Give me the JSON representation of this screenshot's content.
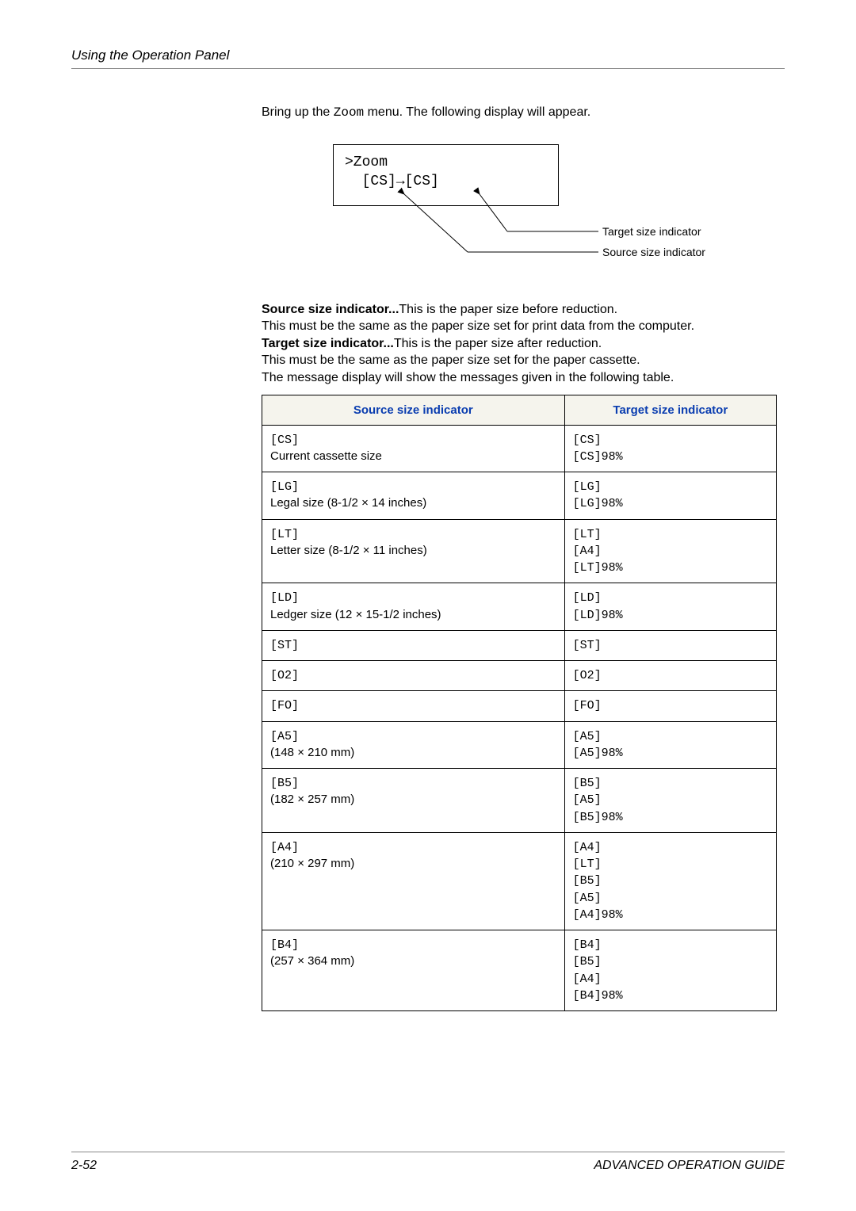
{
  "header": {
    "title": "Using the Operation Panel"
  },
  "intro": {
    "pre": "Bring up the ",
    "code": "Zoom",
    "post": " menu. The following display will appear."
  },
  "diagram": {
    "line1": ">Zoom",
    "line2_pre": "  [CS]",
    "line2_arrow": "→",
    "line2_post": "[CS]",
    "target_label": "Target size indicator",
    "source_label": "Source size indicator"
  },
  "desc": {
    "source_b": "Source size indicator...",
    "source_t1": "This is the paper size before reduction.",
    "source_t2": "This must be the same as the paper size set for print data from the computer.",
    "target_b": "Target size indicator...",
    "target_t1": "This is the paper size after reduction.",
    "target_t2": "This must be the same as the paper size set for the paper cassette.",
    "msg": "The message display will show the messages given in the following table."
  },
  "table": {
    "styling": {
      "header_bg": "#f5f4ed",
      "header_color": "#0a3db0",
      "border_color": "#000000",
      "font_size": 15
    },
    "col1_header": "Source size indicator",
    "col2_header": "Target size indicator",
    "rows": [
      {
        "s_code": "[CS]",
        "s_desc": "Current cassette size",
        "t_lines": [
          "[CS]",
          "[CS]98%"
        ]
      },
      {
        "s_code": "[LG]",
        "s_desc": "Legal size (8-1/2 × 14 inches)",
        "t_lines": [
          "[LG]",
          "[LG]98%"
        ]
      },
      {
        "s_code": "[LT]",
        "s_desc": "Letter size (8-1/2 × 11 inches)",
        "t_lines": [
          "[LT]",
          "[A4]",
          "[LT]98%"
        ]
      },
      {
        "s_code": "[LD]",
        "s_desc": "Ledger size (12 × 15-1/2 inches)",
        "t_lines": [
          "[LD]",
          "[LD]98%"
        ]
      },
      {
        "s_code": "[ST]",
        "s_desc": "",
        "t_lines": [
          "[ST]"
        ]
      },
      {
        "s_code": "[O2]",
        "s_desc": "",
        "t_lines": [
          "[O2]"
        ]
      },
      {
        "s_code": "[FO]",
        "s_desc": "",
        "t_lines": [
          "[FO]"
        ]
      },
      {
        "s_code": "[A5]",
        "s_desc": "(148 × 210 mm)",
        "t_lines": [
          "[A5]",
          "[A5]98%"
        ]
      },
      {
        "s_code": "[B5]",
        "s_desc": "(182 × 257 mm)",
        "t_lines": [
          "[B5]",
          "[A5]",
          "[B5]98%"
        ]
      },
      {
        "s_code": "[A4]",
        "s_desc": "(210 × 297 mm)",
        "t_lines": [
          "[A4]",
          "[LT]",
          "[B5]",
          "[A5]",
          "[A4]98%"
        ]
      },
      {
        "s_code": "[B4]",
        "s_desc": "(257 × 364 mm)",
        "t_lines": [
          "[B4]",
          "[B5]",
          "[A4]",
          "[B4]98%"
        ]
      }
    ]
  },
  "footer": {
    "page": "2-52",
    "guide": "ADVANCED OPERATION GUIDE"
  }
}
